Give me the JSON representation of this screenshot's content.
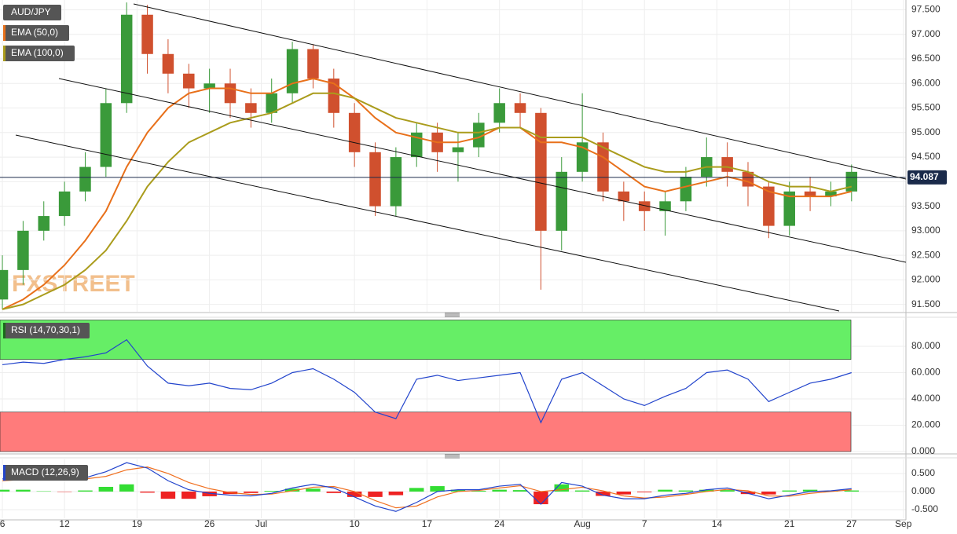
{
  "chart_data": [
    {
      "type": "candlestick",
      "title": "AUD/JPY",
      "watermark": "FXSTREET",
      "x": [
        0,
        2,
        4,
        6,
        8,
        10,
        12,
        14,
        16,
        18,
        20,
        22,
        24,
        26,
        28,
        30,
        32,
        34,
        36,
        38,
        40,
        42,
        44,
        46,
        48,
        50,
        52,
        54,
        56,
        58,
        60,
        62,
        64,
        66,
        68,
        70,
        72,
        74,
        76,
        78,
        80,
        82
      ],
      "open": [
        91.6,
        92.2,
        93.0,
        93.3,
        93.8,
        94.3,
        95.6,
        97.4,
        96.6,
        96.2,
        95.9,
        96.0,
        95.6,
        95.4,
        95.8,
        96.7,
        96.1,
        95.4,
        94.6,
        93.5,
        94.5,
        95.0,
        94.6,
        94.7,
        95.2,
        95.6,
        95.4,
        93.0,
        94.2,
        94.8,
        93.8,
        93.6,
        93.4,
        93.6,
        94.1,
        94.5,
        94.2,
        93.9,
        93.1,
        93.8,
        93.7,
        93.8
      ],
      "high": [
        92.5,
        93.2,
        93.6,
        94.0,
        94.6,
        95.9,
        97.65,
        97.6,
        96.9,
        96.4,
        96.3,
        96.3,
        95.9,
        96.1,
        96.85,
        96.8,
        96.3,
        95.6,
        94.8,
        94.7,
        95.2,
        95.2,
        95.0,
        95.4,
        95.9,
        95.8,
        95.5,
        94.5,
        95.8,
        95.0,
        94.0,
        93.8,
        93.8,
        94.3,
        94.9,
        94.8,
        94.4,
        94.0,
        94.0,
        94.1,
        94.0,
        94.35
      ],
      "low": [
        91.4,
        91.9,
        92.8,
        93.1,
        93.6,
        94.1,
        95.4,
        96.2,
        95.8,
        95.5,
        95.4,
        95.3,
        95.1,
        95.2,
        95.6,
        95.9,
        95.1,
        94.3,
        93.3,
        93.3,
        94.3,
        94.2,
        94.0,
        94.5,
        95.0,
        95.1,
        91.8,
        92.6,
        94.0,
        93.6,
        93.2,
        93.0,
        92.9,
        93.4,
        93.9,
        93.9,
        93.5,
        92.85,
        92.9,
        93.4,
        93.5,
        93.6
      ],
      "close": [
        92.2,
        93.0,
        93.3,
        93.8,
        94.3,
        95.6,
        97.4,
        96.6,
        96.2,
        95.9,
        96.0,
        95.6,
        95.4,
        95.8,
        96.7,
        96.1,
        95.4,
        94.6,
        93.5,
        94.5,
        95.0,
        94.6,
        94.7,
        95.2,
        95.6,
        95.4,
        93.0,
        94.2,
        94.8,
        93.8,
        93.6,
        93.4,
        93.6,
        94.1,
        94.5,
        94.2,
        93.9,
        93.1,
        93.8,
        93.7,
        93.8,
        94.2
      ],
      "up_color": "#3a9a3a",
      "down_color": "#d0502e",
      "series": [
        {
          "name": "EMA (50,0)",
          "color": "#e8701a",
          "values": [
            91.4,
            91.6,
            91.9,
            92.3,
            92.8,
            93.4,
            94.3,
            95.0,
            95.5,
            95.8,
            95.9,
            95.9,
            95.8,
            95.8,
            96.0,
            96.1,
            96.0,
            95.7,
            95.3,
            95.0,
            94.9,
            94.8,
            94.8,
            94.9,
            95.1,
            95.1,
            94.8,
            94.8,
            94.7,
            94.5,
            94.2,
            93.9,
            93.8,
            93.9,
            94.0,
            94.1,
            94.0,
            93.8,
            93.7,
            93.7,
            93.7,
            93.8
          ]
        },
        {
          "name": "EMA (100,0)",
          "color": "#aa9c1c",
          "values": [
            91.4,
            91.5,
            91.7,
            91.9,
            92.2,
            92.6,
            93.2,
            93.9,
            94.4,
            94.8,
            95.0,
            95.2,
            95.3,
            95.4,
            95.6,
            95.8,
            95.8,
            95.7,
            95.5,
            95.3,
            95.2,
            95.1,
            95.0,
            95.0,
            95.1,
            95.1,
            94.9,
            94.9,
            94.9,
            94.7,
            94.5,
            94.3,
            94.2,
            94.2,
            94.3,
            94.3,
            94.2,
            94.0,
            93.9,
            93.9,
            93.8,
            93.9
          ]
        }
      ],
      "current_price": 94.087,
      "xlim": [
        -0.23,
        87.25
      ],
      "ylim": [
        91.35,
        97.7
      ],
      "yticks": [
        {
          "value": 91.5,
          "label": "91.500"
        },
        {
          "value": 92,
          "label": "92.000"
        },
        {
          "value": 92.5,
          "label": "92.500"
        },
        {
          "value": 93,
          "label": "93.000"
        },
        {
          "value": 93.5,
          "label": "93.500"
        },
        {
          "value": 94,
          "label": "94.000"
        },
        {
          "value": 94.5,
          "label": "94.500"
        },
        {
          "value": 95,
          "label": "95.000"
        },
        {
          "value": 95.5,
          "label": "95.500"
        },
        {
          "value": 96,
          "label": "96.000"
        },
        {
          "value": 96.5,
          "label": "96.500"
        },
        {
          "value": 97,
          "label": "97.000"
        },
        {
          "value": 97.5,
          "label": "97.500"
        }
      ]
    },
    {
      "type": "line",
      "title": "RSI (14,70,30,1)",
      "x": [
        0,
        2,
        4,
        6,
        8,
        10,
        12,
        14,
        16,
        18,
        20,
        22,
        24,
        26,
        28,
        30,
        32,
        34,
        36,
        38,
        40,
        42,
        44,
        46,
        48,
        50,
        52,
        54,
        56,
        58,
        60,
        62,
        64,
        66,
        68,
        70,
        72,
        74,
        76,
        78,
        80,
        82
      ],
      "series": [
        {
          "color": "#2244cc",
          "values": [
            66,
            68,
            67,
            70,
            72,
            75,
            85,
            65,
            52,
            50,
            52,
            48,
            47,
            52,
            60,
            63,
            55,
            45,
            30,
            25,
            55,
            58,
            54,
            56,
            58,
            60,
            22,
            55,
            60,
            50,
            40,
            35,
            42,
            48,
            60,
            62,
            55,
            38,
            45,
            52,
            55,
            60
          ]
        }
      ],
      "overbought": 70,
      "oversold": 30,
      "overbought_color": "#66ee66",
      "oversold_color": "#ff7b7b",
      "xlim": [
        -0.23,
        87.25
      ],
      "ylim": [
        0,
        100
      ],
      "yticks": [
        {
          "value": 0,
          "label": "0.000"
        },
        {
          "value": 20,
          "label": "20.000"
        },
        {
          "value": 40,
          "label": "40.000"
        },
        {
          "value": 60,
          "label": "60.000"
        },
        {
          "value": 80,
          "label": "80.000"
        }
      ]
    },
    {
      "type": "macd",
      "title": "MACD (12,26,9)",
      "x": [
        0,
        2,
        4,
        6,
        8,
        10,
        12,
        14,
        16,
        18,
        20,
        22,
        24,
        26,
        28,
        30,
        32,
        34,
        36,
        38,
        40,
        42,
        44,
        46,
        48,
        50,
        52,
        54,
        56,
        58,
        60,
        62,
        64,
        66,
        68,
        70,
        72,
        74,
        76,
        78,
        80,
        82
      ],
      "macd": {
        "color": "#2244cc",
        "values": [
          0.35,
          0.38,
          0.35,
          0.33,
          0.38,
          0.55,
          0.8,
          0.65,
          0.3,
          0.05,
          -0.05,
          -0.1,
          -0.12,
          -0.05,
          0.1,
          0.2,
          0.1,
          -0.15,
          -0.4,
          -0.55,
          -0.3,
          0.0,
          0.05,
          0.05,
          0.15,
          0.2,
          -0.35,
          0.25,
          0.15,
          -0.1,
          -0.2,
          -0.2,
          -0.1,
          -0.05,
          0.05,
          0.1,
          -0.05,
          -0.2,
          -0.1,
          0.0,
          0.02,
          0.08
        ]
      },
      "signal": {
        "color": "#f07020",
        "values": [
          0.3,
          0.33,
          0.34,
          0.34,
          0.35,
          0.42,
          0.6,
          0.68,
          0.5,
          0.25,
          0.08,
          -0.03,
          -0.08,
          -0.07,
          0.02,
          0.12,
          0.14,
          0.0,
          -0.25,
          -0.45,
          -0.4,
          -0.15,
          0.0,
          0.03,
          0.1,
          0.16,
          0.0,
          0.05,
          0.12,
          0.02,
          -0.12,
          -0.18,
          -0.15,
          -0.08,
          0.0,
          0.06,
          0.02,
          -0.12,
          -0.13,
          -0.05,
          0.0,
          0.05
        ]
      },
      "histogram": {
        "up_color": "#33dd33",
        "down_color": "#ee2222",
        "values": [
          0.05,
          0.05,
          0.01,
          -0.01,
          0.03,
          0.13,
          0.2,
          -0.03,
          -0.2,
          -0.2,
          -0.13,
          -0.07,
          -0.04,
          0.02,
          0.08,
          0.08,
          -0.04,
          -0.15,
          -0.15,
          -0.1,
          0.1,
          0.15,
          0.05,
          0.02,
          0.05,
          0.04,
          -0.35,
          0.2,
          0.03,
          -0.12,
          -0.08,
          -0.02,
          0.05,
          0.03,
          0.05,
          0.04,
          -0.07,
          -0.08,
          0.03,
          0.05,
          0.02,
          0.03
        ]
      },
      "xlim": [
        -0.23,
        87.25
      ],
      "ylim": [
        -0.74,
        0.89
      ],
      "yticks": [
        {
          "value": -0.5,
          "label": "-0.500"
        },
        {
          "value": 0,
          "label": "0.000"
        },
        {
          "value": 0.5,
          "label": "0.500"
        }
      ],
      "xticks": [
        {
          "value": 0,
          "label": "6"
        },
        {
          "value": 6,
          "label": "12"
        },
        {
          "value": 13,
          "label": "19"
        },
        {
          "value": 20,
          "label": "26"
        },
        {
          "value": 25,
          "label": "Jul"
        },
        {
          "value": 34,
          "label": "10"
        },
        {
          "value": 41,
          "label": "17"
        },
        {
          "value": 48,
          "label": "24"
        },
        {
          "value": 56,
          "label": "Aug"
        },
        {
          "value": 62,
          "label": "7"
        },
        {
          "value": 69,
          "label": "14"
        },
        {
          "value": 76,
          "label": "21"
        },
        {
          "value": 82,
          "label": "27"
        },
        {
          "value": 87,
          "label": "Sep"
        }
      ]
    }
  ]
}
